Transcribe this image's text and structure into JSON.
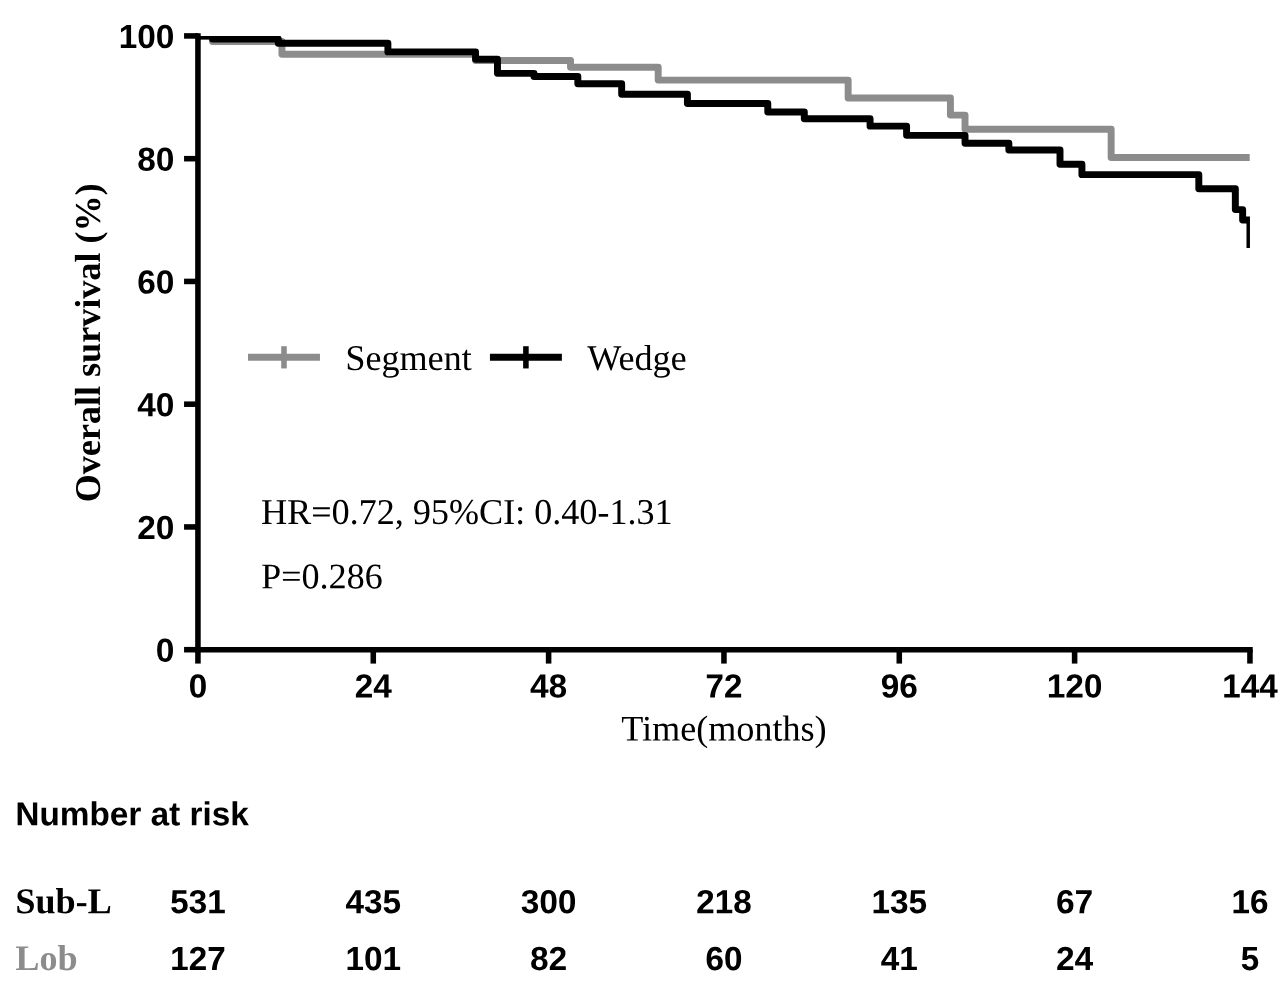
{
  "chart_data": {
    "type": "step",
    "xlabel": "Time(months)",
    "ylabel": "Overall survival (%)",
    "xlim": [
      0,
      144
    ],
    "ylim": [
      0,
      100
    ],
    "xticks": [
      0,
      24,
      48,
      72,
      96,
      120,
      144
    ],
    "yticks": [
      0,
      20,
      40,
      60,
      80,
      100
    ],
    "grid": false,
    "legend": "left",
    "series": [
      {
        "name": "Segment",
        "color": "#8c8c8c",
        "x": [
          0,
          2,
          11.5,
          38,
          51,
          63,
          89,
          103,
          105,
          125,
          143.5
        ],
        "values": [
          100,
          99.1,
          97,
          96,
          94.9,
          92.8,
          89.9,
          87.1,
          84.8,
          80.2,
          80.2
        ]
      },
      {
        "name": "Wedge",
        "color": "#000000",
        "x": [
          0,
          2,
          11,
          26,
          38,
          41,
          46,
          52,
          58,
          67,
          78,
          83,
          92,
          97,
          105,
          111,
          118,
          121,
          137,
          142,
          143,
          144
        ],
        "values": [
          100,
          99.5,
          98.8,
          97.4,
          96.2,
          93.9,
          93.4,
          92.2,
          90.5,
          89,
          87.6,
          86.5,
          85.3,
          83.8,
          82.5,
          81.4,
          79.1,
          77.4,
          75.1,
          71.7,
          70,
          66
        ]
      }
    ],
    "annotations": [
      "HR=0.72, 95%CI: 0.40-1.31",
      "P=0.286",
      "Number at risk",
      "Sub-L",
      "531",
      "435",
      "300",
      "218",
      "135",
      "67",
      "16",
      "Lob",
      "127",
      "101",
      "82",
      "60",
      "41",
      "24",
      "5"
    ]
  }
}
